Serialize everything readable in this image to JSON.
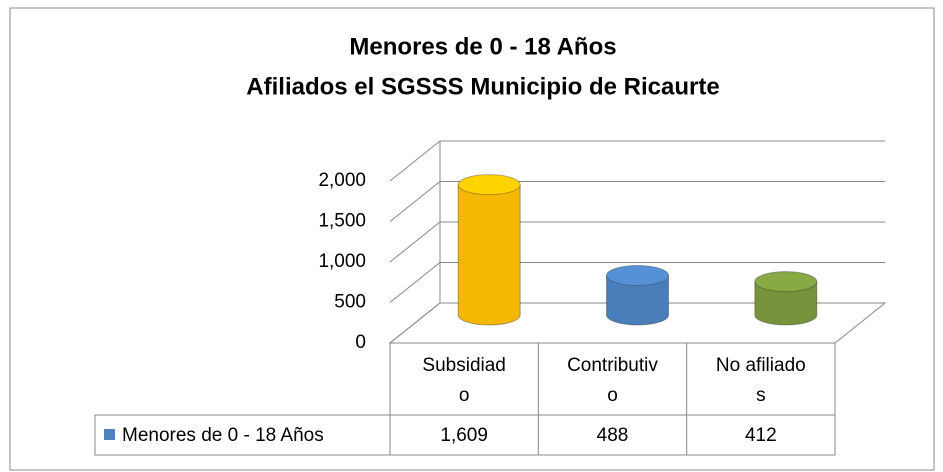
{
  "chart_data": {
    "type": "cylinder3d",
    "title": "Menores de 0 - 18 Años",
    "subtitle": "Afiliados el SGSSS Municipio de Ricaurte",
    "categories": [
      "Subsidiado",
      "Contributivo",
      "No afiliados"
    ],
    "series": [
      {
        "name": "Menores de 0 - 18 Años",
        "color": "#4f81bd",
        "point_colors": [
          "#f5b800",
          "#4a7ebb",
          "#77933c"
        ],
        "values": [
          1609,
          488,
          412
        ],
        "value_labels": [
          "1,609",
          "488",
          "412"
        ]
      }
    ],
    "ylim": [
      0,
      2000
    ],
    "yticks": [
      0,
      500,
      {
        "value": 1000,
        "label": "1,000"
      },
      {
        "value": 1500,
        "label": "1,500"
      },
      {
        "value": 2000,
        "label": "2,000"
      }
    ],
    "grid": true,
    "data_table": true
  }
}
